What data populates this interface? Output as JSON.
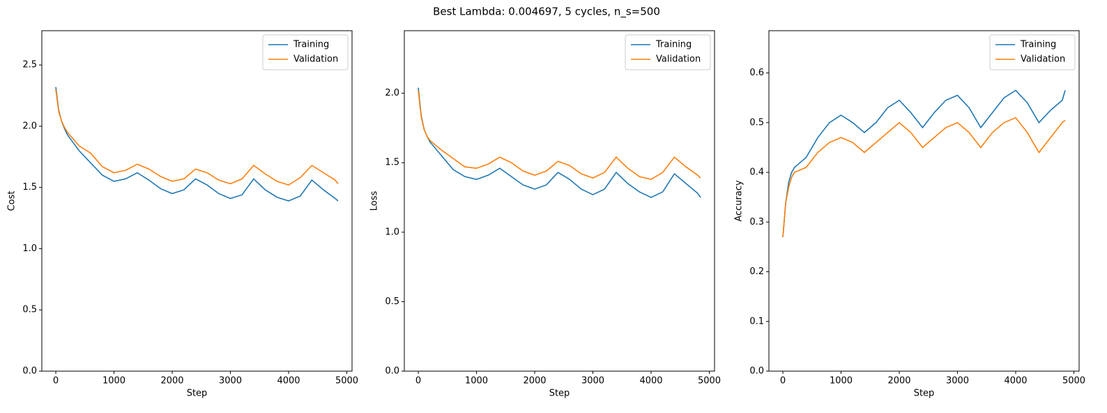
{
  "title": "Best Lambda: 0.004697, 5 cycles, n_s=500",
  "chart_data": [
    {
      "type": "line",
      "xlabel": "Step",
      "ylabel": "Cost",
      "legend": "upper right",
      "x": [
        0,
        50,
        100,
        150,
        200,
        400,
        600,
        800,
        1000,
        1200,
        1400,
        1600,
        1800,
        2000,
        2200,
        2400,
        2600,
        2800,
        3000,
        3200,
        3400,
        3600,
        3800,
        4000,
        4200,
        4400,
        4600,
        4800,
        4850
      ],
      "series": [
        {
          "name": "Training",
          "color": "#1f77b4",
          "values": [
            2.32,
            2.13,
            2.04,
            1.98,
            1.93,
            1.8,
            1.7,
            1.6,
            1.55,
            1.57,
            1.62,
            1.56,
            1.49,
            1.45,
            1.48,
            1.57,
            1.52,
            1.45,
            1.41,
            1.44,
            1.57,
            1.48,
            1.42,
            1.39,
            1.43,
            1.56,
            1.48,
            1.41,
            1.39
          ]
        },
        {
          "name": "Validation",
          "color": "#ff7f0e",
          "values": [
            2.3,
            2.12,
            2.04,
            1.99,
            1.95,
            1.84,
            1.78,
            1.67,
            1.62,
            1.64,
            1.69,
            1.65,
            1.59,
            1.55,
            1.57,
            1.65,
            1.62,
            1.56,
            1.53,
            1.57,
            1.68,
            1.61,
            1.55,
            1.52,
            1.58,
            1.68,
            1.62,
            1.56,
            1.53
          ]
        }
      ],
      "xlim": [
        -240,
        5090
      ],
      "xticks": [
        0,
        1000,
        2000,
        3000,
        4000,
        5000
      ],
      "ylim": [
        0,
        2.78
      ],
      "yticks": [
        {
          "value": 0,
          "label": "0.0"
        },
        0.5,
        {
          "value": 1,
          "label": "1.0"
        },
        1.5,
        {
          "value": 2,
          "label": "2.0"
        },
        2.5
      ]
    },
    {
      "type": "line",
      "xlabel": "Step",
      "ylabel": "Loss",
      "legend": "upper right",
      "x": [
        0,
        50,
        100,
        150,
        200,
        400,
        600,
        800,
        1000,
        1200,
        1400,
        1600,
        1800,
        2000,
        2200,
        2400,
        2600,
        2800,
        3000,
        3200,
        3400,
        3600,
        3800,
        4000,
        4200,
        4400,
        4600,
        4800,
        4850
      ],
      "series": [
        {
          "name": "Training",
          "color": "#1f77b4",
          "values": [
            2.04,
            1.84,
            1.74,
            1.69,
            1.65,
            1.55,
            1.45,
            1.4,
            1.38,
            1.41,
            1.46,
            1.4,
            1.34,
            1.31,
            1.34,
            1.43,
            1.38,
            1.31,
            1.27,
            1.31,
            1.43,
            1.35,
            1.29,
            1.25,
            1.29,
            1.42,
            1.35,
            1.28,
            1.25
          ]
        },
        {
          "name": "Validation",
          "color": "#ff7f0e",
          "values": [
            2.02,
            1.83,
            1.74,
            1.69,
            1.66,
            1.59,
            1.53,
            1.47,
            1.46,
            1.49,
            1.54,
            1.5,
            1.44,
            1.41,
            1.44,
            1.51,
            1.48,
            1.42,
            1.39,
            1.43,
            1.54,
            1.46,
            1.4,
            1.38,
            1.43,
            1.54,
            1.47,
            1.41,
            1.39
          ]
        }
      ],
      "xlim": [
        -240,
        5090
      ],
      "xticks": [
        0,
        1000,
        2000,
        3000,
        4000,
        5000
      ],
      "ylim": [
        0,
        2.45
      ],
      "yticks": [
        {
          "value": 0,
          "label": "0.0"
        },
        0.5,
        {
          "value": 1,
          "label": "1.0"
        },
        1.5,
        {
          "value": 2,
          "label": "2.0"
        }
      ]
    },
    {
      "type": "line",
      "xlabel": "Step",
      "ylabel": "Accuracy",
      "legend": "upper right",
      "x": [
        0,
        50,
        100,
        150,
        200,
        400,
        600,
        800,
        1000,
        1200,
        1400,
        1600,
        1800,
        2000,
        2200,
        2400,
        2600,
        2800,
        3000,
        3200,
        3400,
        3600,
        3800,
        4000,
        4200,
        4400,
        4600,
        4800,
        4850
      ],
      "series": [
        {
          "name": "Training",
          "color": "#1f77b4",
          "values": [
            0.27,
            0.34,
            0.38,
            0.4,
            0.41,
            0.43,
            0.47,
            0.5,
            0.515,
            0.5,
            0.48,
            0.5,
            0.53,
            0.545,
            0.52,
            0.49,
            0.52,
            0.545,
            0.555,
            0.53,
            0.49,
            0.52,
            0.55,
            0.565,
            0.54,
            0.5,
            0.525,
            0.545,
            0.565
          ]
        },
        {
          "name": "Validation",
          "color": "#ff7f0e",
          "values": [
            0.27,
            0.34,
            0.37,
            0.39,
            0.4,
            0.41,
            0.44,
            0.46,
            0.47,
            0.46,
            0.44,
            0.46,
            0.48,
            0.5,
            0.48,
            0.45,
            0.47,
            0.49,
            0.5,
            0.48,
            0.45,
            0.48,
            0.5,
            0.51,
            0.48,
            0.44,
            0.47,
            0.5,
            0.505
          ]
        }
      ],
      "xlim": [
        -240,
        5090
      ],
      "xticks": [
        0,
        1000,
        2000,
        3000,
        4000,
        5000
      ],
      "ylim": [
        0,
        0.685
      ],
      "yticks": [
        {
          "value": 0,
          "label": "0.0"
        },
        0.1,
        0.2,
        0.3,
        0.4,
        0.5,
        0.6
      ]
    }
  ]
}
